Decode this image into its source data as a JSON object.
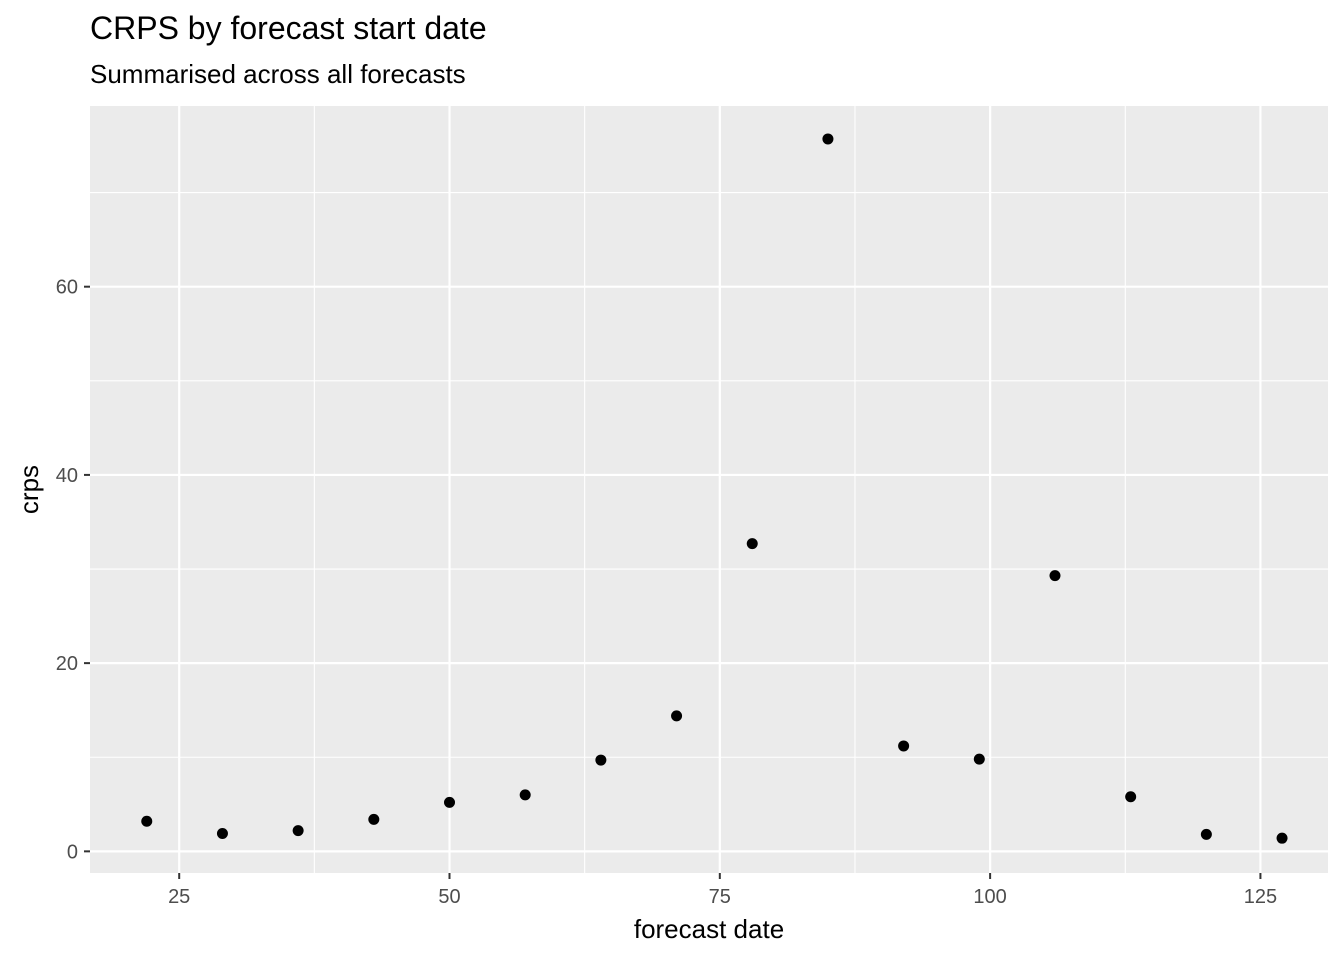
{
  "chart_data": {
    "type": "scatter",
    "title": "CRPS by forecast start date",
    "subtitle": "Summarised across all forecasts",
    "xlabel": "forecast date",
    "ylabel": "crps",
    "xlim": [
      16.75,
      131.25
    ],
    "ylim": [
      -2.3,
      79.2
    ],
    "x_ticks": [
      25,
      50,
      75,
      100,
      125
    ],
    "y_ticks": [
      0,
      20,
      40,
      60
    ],
    "x_tick_labels": [
      "25",
      "50",
      "75",
      "100",
      "125"
    ],
    "y_tick_labels": [
      "0",
      "20",
      "40",
      "60"
    ],
    "grid": true,
    "panel_color": "#ebebeb",
    "point_color": "#000000",
    "points": [
      {
        "x": 22,
        "y": 3.2
      },
      {
        "x": 29,
        "y": 1.9
      },
      {
        "x": 36,
        "y": 2.2
      },
      {
        "x": 43,
        "y": 3.4
      },
      {
        "x": 50,
        "y": 5.2
      },
      {
        "x": 57,
        "y": 6.0
      },
      {
        "x": 64,
        "y": 9.7
      },
      {
        "x": 71,
        "y": 14.4
      },
      {
        "x": 78,
        "y": 32.7
      },
      {
        "x": 85,
        "y": 75.7
      },
      {
        "x": 92,
        "y": 11.2
      },
      {
        "x": 99,
        "y": 9.8
      },
      {
        "x": 106,
        "y": 29.3
      },
      {
        "x": 113,
        "y": 5.8
      },
      {
        "x": 120,
        "y": 1.8
      },
      {
        "x": 127,
        "y": 1.4
      }
    ]
  }
}
